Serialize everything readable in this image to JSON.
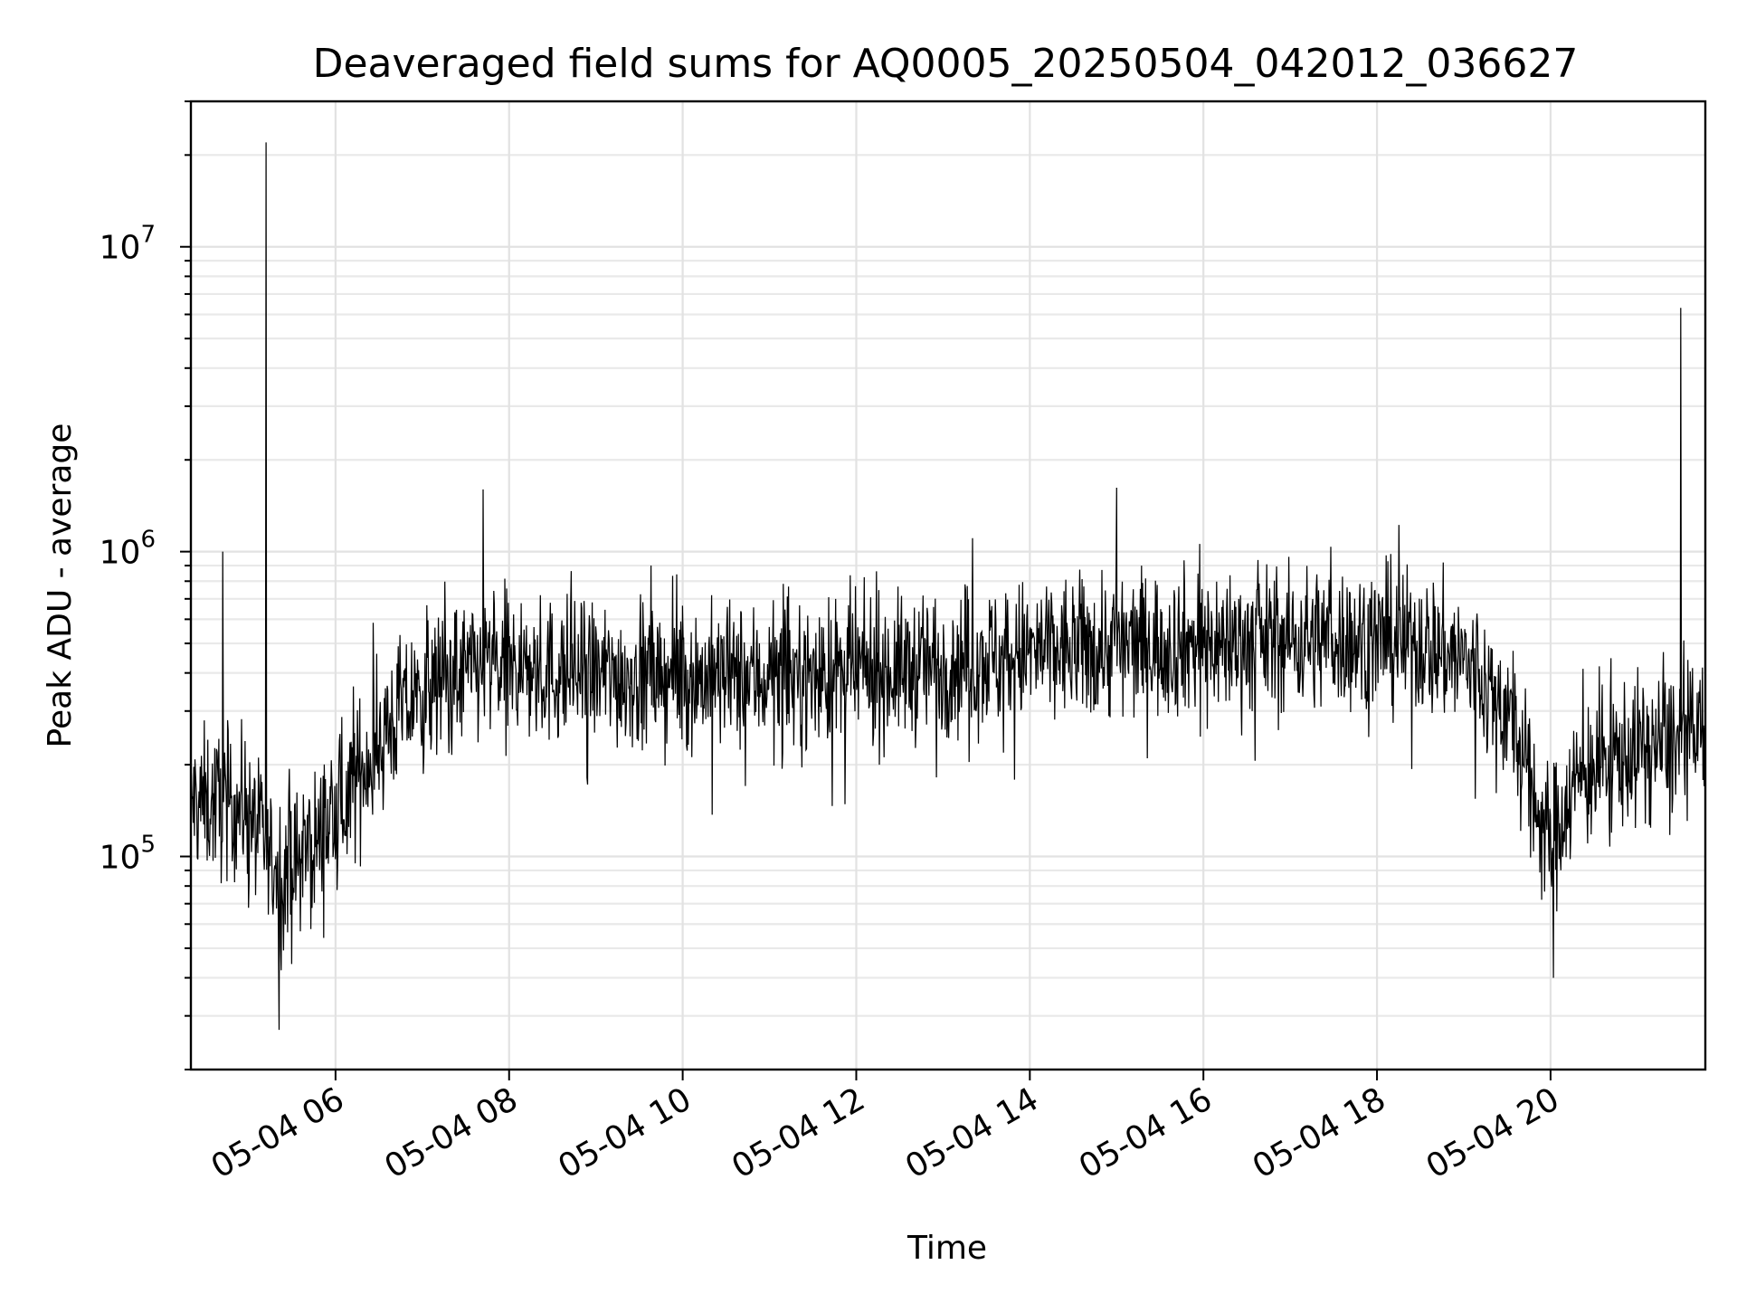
{
  "chart_data": {
    "type": "line",
    "title": "Deaveraged field sums for AQ0005_20250504_042012_036627",
    "xlabel": "Time",
    "ylabel": "Peak ADU - average",
    "yscale": "log",
    "xlim": [
      "2025-05-04T04:20",
      "2025-05-04T21:47"
    ],
    "ylim": [
      20000,
      30000000
    ],
    "grid": true,
    "legend": "none",
    "line_color": "#000000",
    "x_ticks": [
      "05-04 06",
      "05-04 08",
      "05-04 10",
      "05-04 12",
      "05-04 14",
      "05-04 16",
      "05-04 18",
      "05-04 20"
    ],
    "x_tick_times": [
      "2025-05-04T06:00",
      "2025-05-04T08:00",
      "2025-05-04T10:00",
      "2025-05-04T12:00",
      "2025-05-04T14:00",
      "2025-05-04T16:00",
      "2025-05-04T18:00",
      "2025-05-04T20:00"
    ],
    "y_ticks": [
      {
        "value": 100000,
        "base": "10",
        "exp": "5"
      },
      {
        "value": 1000000,
        "base": "10",
        "exp": "6"
      },
      {
        "value": 10000000,
        "base": "10",
        "exp": "7"
      }
    ],
    "series": [
      {
        "x": [
          "2025-05-04T04:20",
          "2025-05-04T04:40",
          "2025-05-04T05:00",
          "2025-05-04T05:15",
          "2025-05-04T05:30",
          "2025-05-04T05:45",
          "2025-05-04T06:00",
          "2025-05-04T06:20",
          "2025-05-04T06:45",
          "2025-05-04T07:15",
          "2025-05-04T07:45",
          "2025-05-04T08:30",
          "2025-05-04T09:30",
          "2025-05-04T10:30",
          "2025-05-04T11:30",
          "2025-05-04T12:30",
          "2025-05-04T13:30",
          "2025-05-04T14:30",
          "2025-05-04T15:30",
          "2025-05-04T16:30",
          "2025-05-04T17:30",
          "2025-05-04T18:30",
          "2025-05-04T19:00",
          "2025-05-04T19:30",
          "2025-05-04T19:50",
          "2025-05-04T20:00",
          "2025-05-04T20:15",
          "2025-05-04T20:40",
          "2025-05-04T21:10",
          "2025-05-04T21:47"
        ],
        "y": [
          150000,
          150000,
          145000,
          95000,
          90000,
          110000,
          135000,
          200000,
          300000,
          380000,
          420000,
          400000,
          390000,
          385000,
          390000,
          410000,
          450000,
          480000,
          500000,
          510000,
          520000,
          500000,
          440000,
          300000,
          150000,
          110000,
          170000,
          210000,
          230000,
          250000
        ]
      }
    ],
    "spikes": [
      {
        "x": "2025-05-04T05:12",
        "y": 22000000
      },
      {
        "x": "2025-05-04T21:30",
        "y": 6300000
      },
      {
        "x": "2025-05-04T07:42",
        "y": 1600000
      },
      {
        "x": "2025-05-04T15:00",
        "y": 1620000
      },
      {
        "x": "2025-05-04T04:42",
        "y": 1000000
      },
      {
        "x": "2025-05-04T05:21",
        "y": 27000
      },
      {
        "x": "2025-05-04T20:02",
        "y": 40000
      }
    ]
  }
}
